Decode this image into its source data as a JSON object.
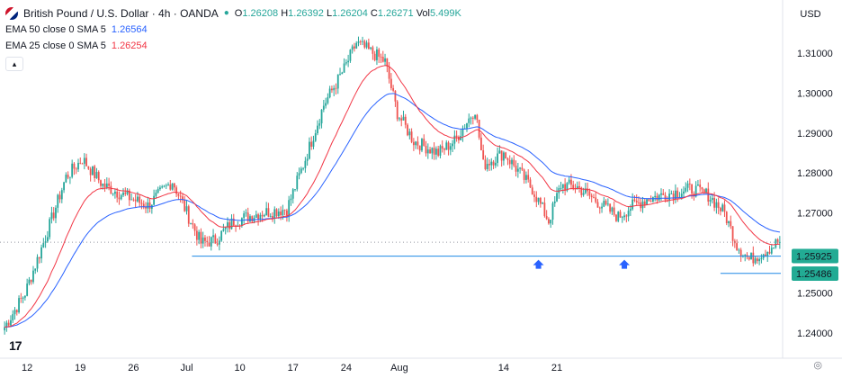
{
  "header": {
    "symbol": "British Pound / U.S. Dollar · 4h · OANDA",
    "open_label": "O",
    "open": "1.26208",
    "high_label": "H",
    "high": "1.26392",
    "low_label": "L",
    "low": "1.26204",
    "close_label": "C",
    "close": "1.26271",
    "vol_label": "Vol",
    "volume": "5.499K",
    "currency": "USD"
  },
  "indicators": [
    {
      "label": "EMA 50 close 0 SMA 5",
      "value": "1.26564",
      "color": "#2962ff"
    },
    {
      "label": "EMA 25 close 0 SMA 5",
      "value": "1.26254",
      "color": "#f23645"
    }
  ],
  "colors": {
    "up": "#26a69a",
    "down": "#ef5350",
    "ema50": "#2962ff",
    "ema25": "#f23645",
    "support": "#1e88e5",
    "price_tag": "#22ab94"
  },
  "chart_data": {
    "type": "candlestick",
    "ylim": [
      1.2355,
      1.3165
    ],
    "y_ticks": [
      "1.31000",
      "1.30000",
      "1.29000",
      "1.28000",
      "1.27000",
      "1.25000",
      "1.24000"
    ],
    "x_ticks": [
      "12",
      "19",
      "26",
      "Jul",
      "10",
      "17",
      "24",
      "Aug",
      "14",
      "21"
    ],
    "price_labels": [
      {
        "text": "1.25925",
        "value": 1.25925
      },
      {
        "text": "1.25486",
        "value": 1.25486
      }
    ],
    "current_price": 1.26271,
    "support_level": 1.2592,
    "secondary_level": 1.2549,
    "grid": false,
    "key_points": [
      [
        0,
        1.2415
      ],
      [
        10,
        1.25
      ],
      [
        20,
        1.264
      ],
      [
        30,
        1.279
      ],
      [
        38,
        1.2835
      ],
      [
        48,
        1.277
      ],
      [
        58,
        1.2745
      ],
      [
        70,
        1.2718
      ],
      [
        82,
        1.278
      ],
      [
        90,
        1.269
      ],
      [
        96,
        1.2625
      ],
      [
        103,
        1.2632
      ],
      [
        112,
        1.268
      ],
      [
        125,
        1.27
      ],
      [
        138,
        1.271
      ],
      [
        146,
        1.282
      ],
      [
        156,
        1.297
      ],
      [
        166,
        1.306
      ],
      [
        172,
        1.3125
      ],
      [
        180,
        1.31
      ],
      [
        186,
        1.3078
      ],
      [
        192,
        1.295
      ],
      [
        200,
        1.288
      ],
      [
        212,
        1.285
      ],
      [
        220,
        1.288
      ],
      [
        230,
        1.296
      ],
      [
        234,
        1.282
      ],
      [
        244,
        1.285
      ],
      [
        252,
        1.28
      ],
      [
        258,
        1.276
      ],
      [
        266,
        1.268
      ],
      [
        272,
        1.277
      ],
      [
        280,
        1.2765
      ],
      [
        292,
        1.272
      ],
      [
        300,
        1.269
      ],
      [
        306,
        1.2715
      ],
      [
        314,
        1.2735
      ],
      [
        326,
        1.275
      ],
      [
        336,
        1.276
      ],
      [
        344,
        1.2745
      ],
      [
        352,
        1.27
      ],
      [
        358,
        1.262
      ],
      [
        364,
        1.2583
      ],
      [
        372,
        1.2605
      ],
      [
        378,
        1.2627
      ]
    ],
    "support_markers": [
      261,
      303
    ]
  }
}
